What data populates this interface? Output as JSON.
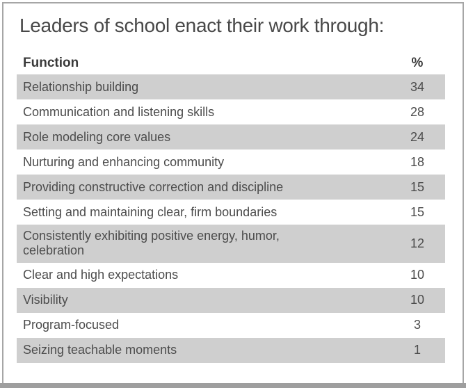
{
  "title": "Leaders of school enact their work through:",
  "table": {
    "columns": [
      {
        "label": "Function"
      },
      {
        "label": "%"
      }
    ],
    "rows": [
      {
        "function": "Relationship building",
        "percent": "34"
      },
      {
        "function": "Communication and listening skills",
        "percent": "28"
      },
      {
        "function": "Role modeling core values",
        "percent": "24"
      },
      {
        "function": "Nurturing and enhancing community",
        "percent": "18"
      },
      {
        "function": "Providing constructive correction and discipline",
        "percent": "15"
      },
      {
        "function": "Setting and maintaining clear, firm boundaries",
        "percent": "15"
      },
      {
        "function": "Consistently exhibiting positive energy, humor, celebration",
        "percent": "12"
      },
      {
        "function": "Clear and high expectations",
        "percent": "10"
      },
      {
        "function": "Visibility",
        "percent": "10"
      },
      {
        "function": "Program-focused",
        "percent": "3"
      },
      {
        "function": "Seizing teachable moments",
        "percent": "1"
      }
    ]
  },
  "colors": {
    "row_shade": "#cfcfcf",
    "border": "#a6a6a6",
    "bottom_bar": "#9e9e9e",
    "text": "#4c4c4c"
  }
}
